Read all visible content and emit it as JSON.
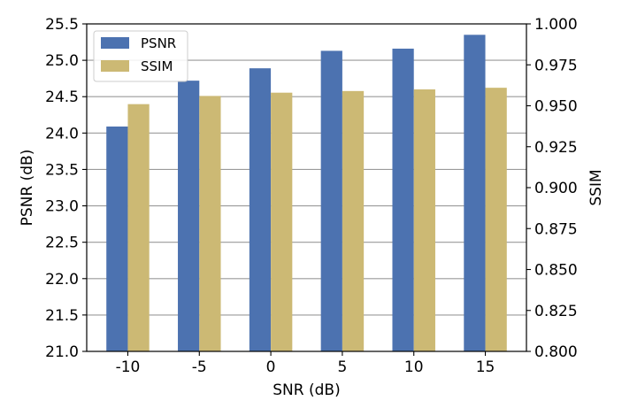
{
  "chart_data": {
    "type": "bar",
    "categories": [
      "-10",
      "-5",
      "0",
      "5",
      "10",
      "15"
    ],
    "xlabel": "SNR (dB)",
    "series": [
      {
        "name": "PSNR",
        "axis": "left",
        "color": "#4c72b0",
        "values": [
          24.09,
          24.72,
          24.89,
          25.13,
          25.16,
          25.35
        ]
      },
      {
        "name": "SSIM",
        "axis": "right",
        "color": "#ccb974",
        "values": [
          0.951,
          0.956,
          0.958,
          0.959,
          0.96,
          0.961
        ]
      }
    ],
    "y_left": {
      "label": "PSNR (dB)",
      "lim": [
        21.0,
        25.5
      ],
      "ticks": [
        "21.0",
        "21.5",
        "22.0",
        "22.5",
        "23.0",
        "23.5",
        "24.0",
        "24.5",
        "25.0",
        "25.5"
      ]
    },
    "y_right": {
      "label": "SSIM",
      "lim": [
        0.8,
        1.0
      ],
      "ticks": [
        "0.800",
        "0.825",
        "0.850",
        "0.875",
        "0.900",
        "0.925",
        "0.950",
        "0.975",
        "1.000"
      ]
    },
    "grid": true,
    "legend_position": "top-left"
  }
}
